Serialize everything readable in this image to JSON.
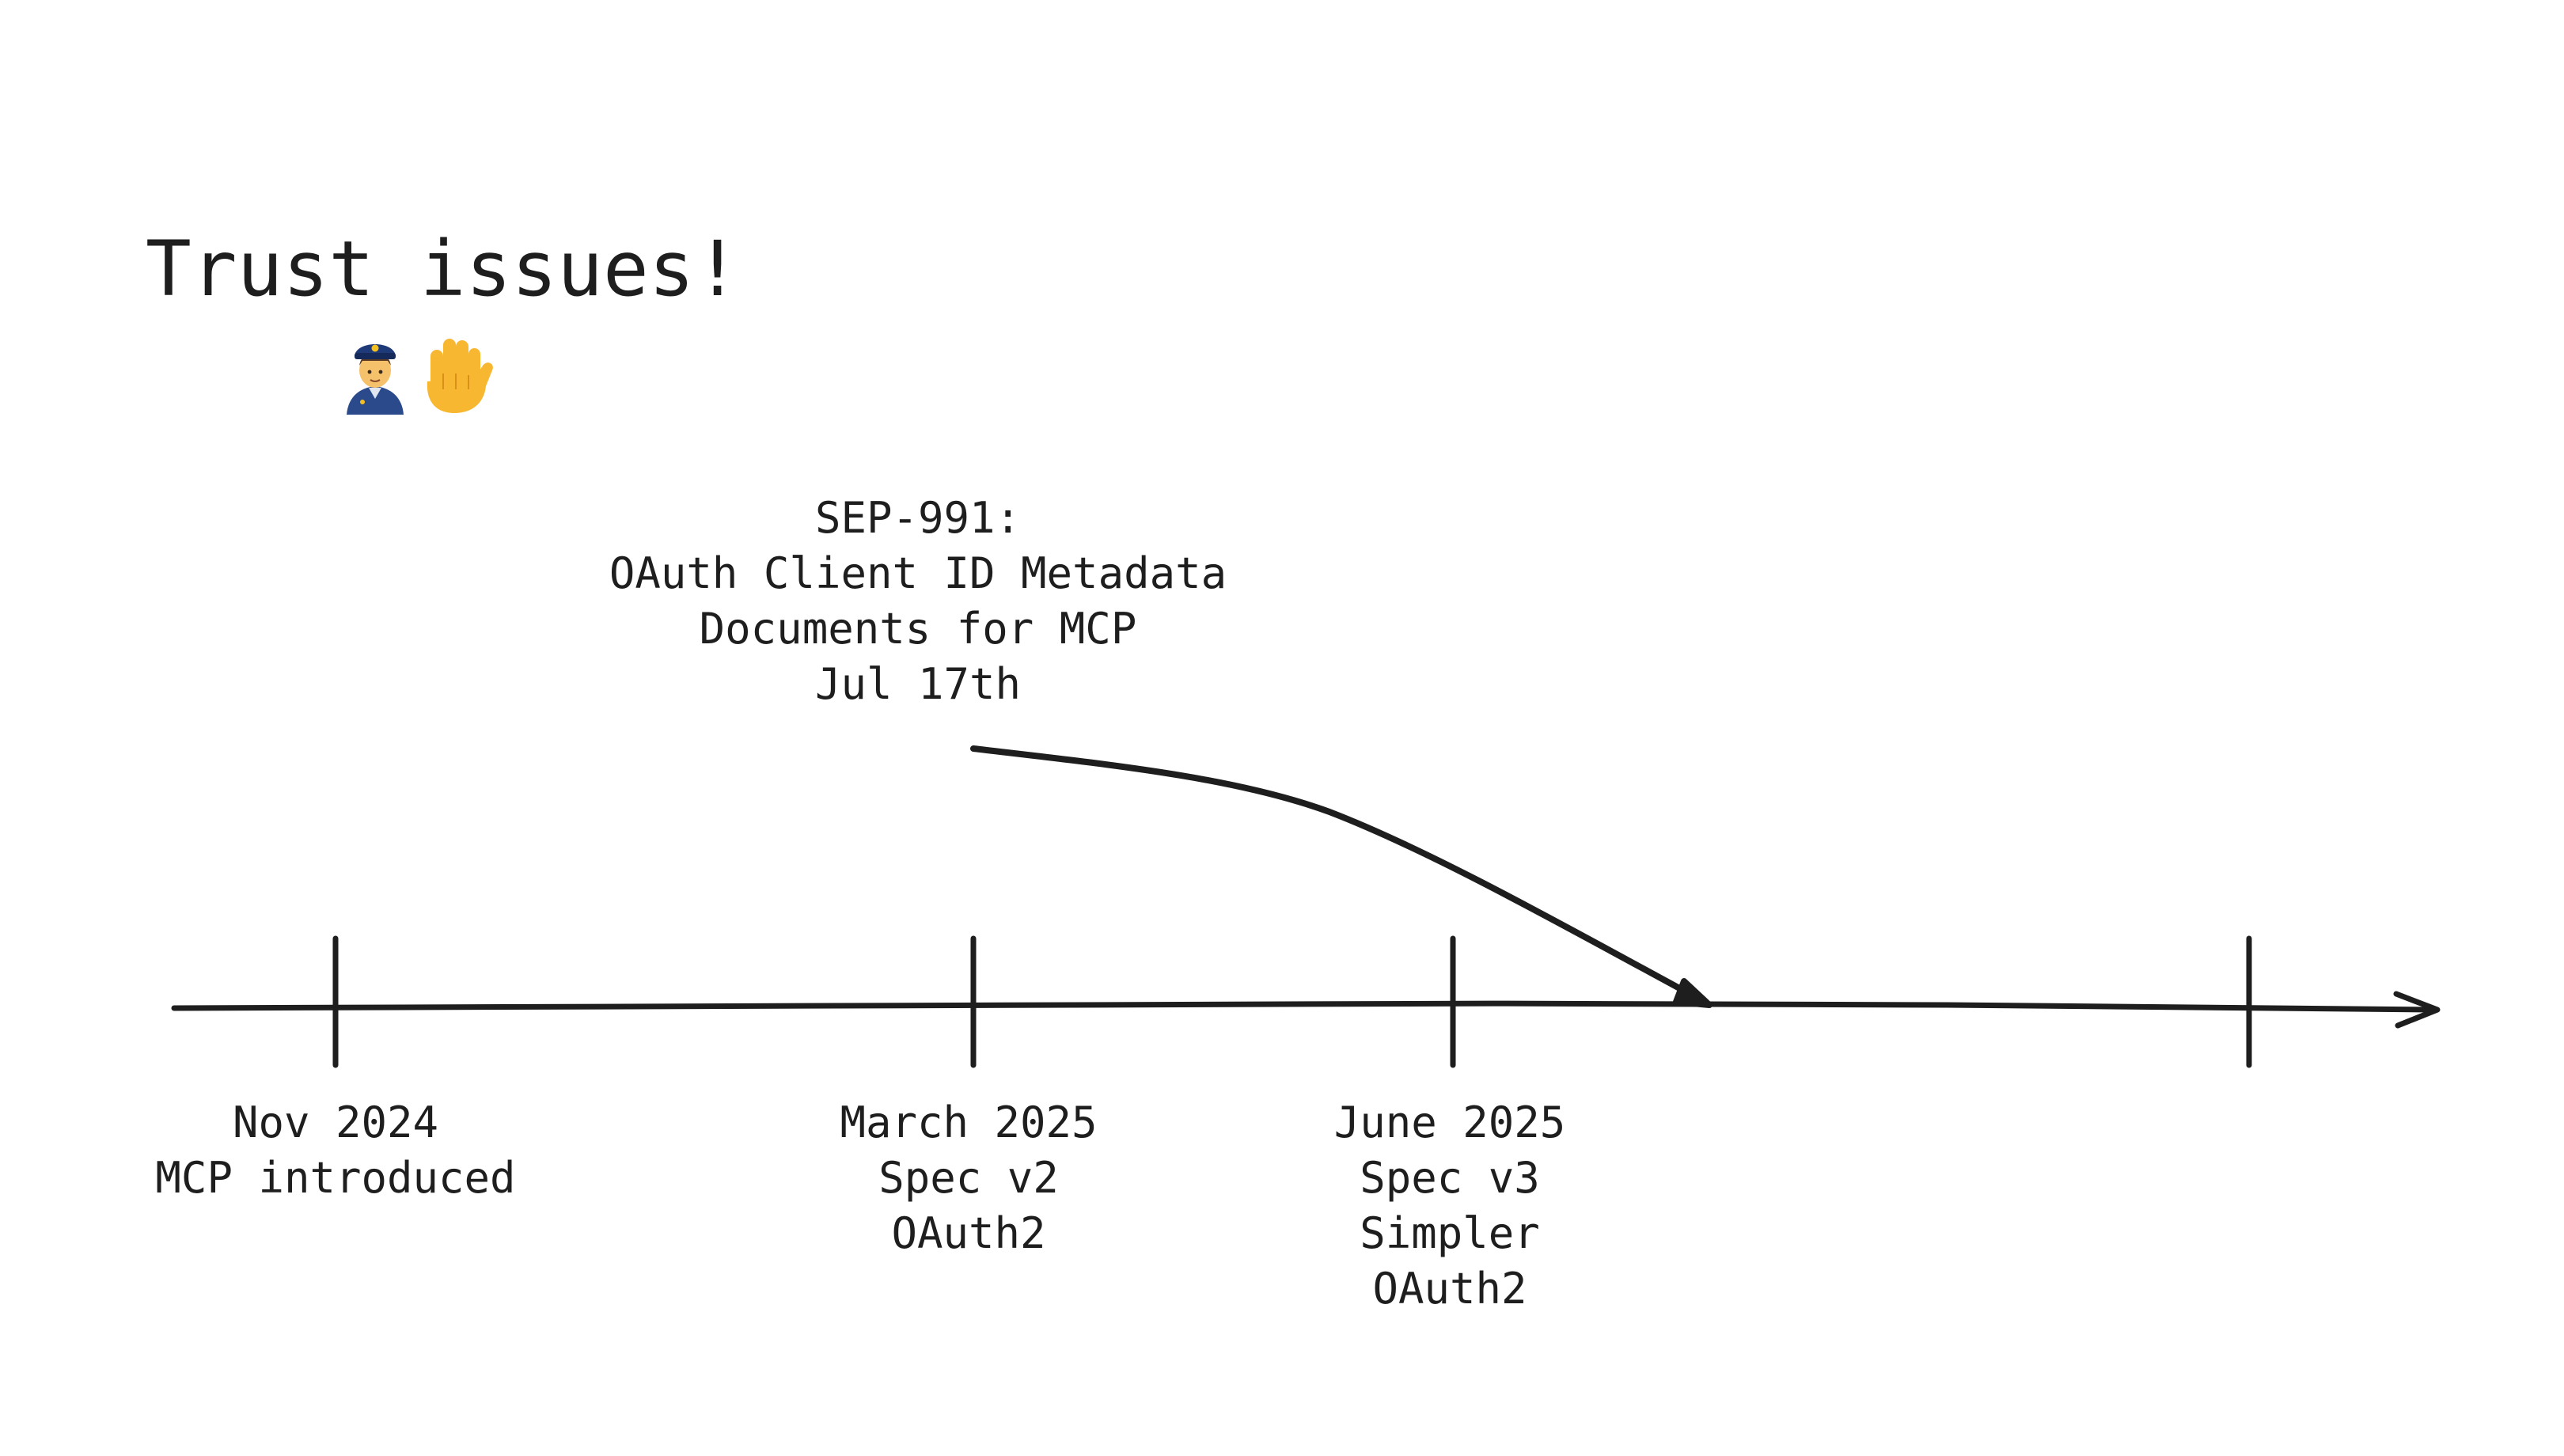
{
  "title": "Trust issues!",
  "emoji": {
    "icons": [
      "police-officer-icon",
      "raised-hand-icon"
    ]
  },
  "callout": {
    "lines": [
      "SEP-991:",
      "OAuth Client ID Metadata",
      "Documents for MCP",
      "Jul 17th"
    ]
  },
  "milestones": [
    {
      "lines": [
        "Nov 2024",
        "MCP introduced"
      ]
    },
    {
      "lines": [
        "March 2025",
        "Spec v2",
        "OAuth2"
      ]
    },
    {
      "lines": [
        "June 2025",
        "Spec v3",
        "Simpler",
        "OAuth2"
      ]
    }
  ],
  "colors": {
    "ink": "#1e1e1e",
    "background": "#ffffff"
  }
}
